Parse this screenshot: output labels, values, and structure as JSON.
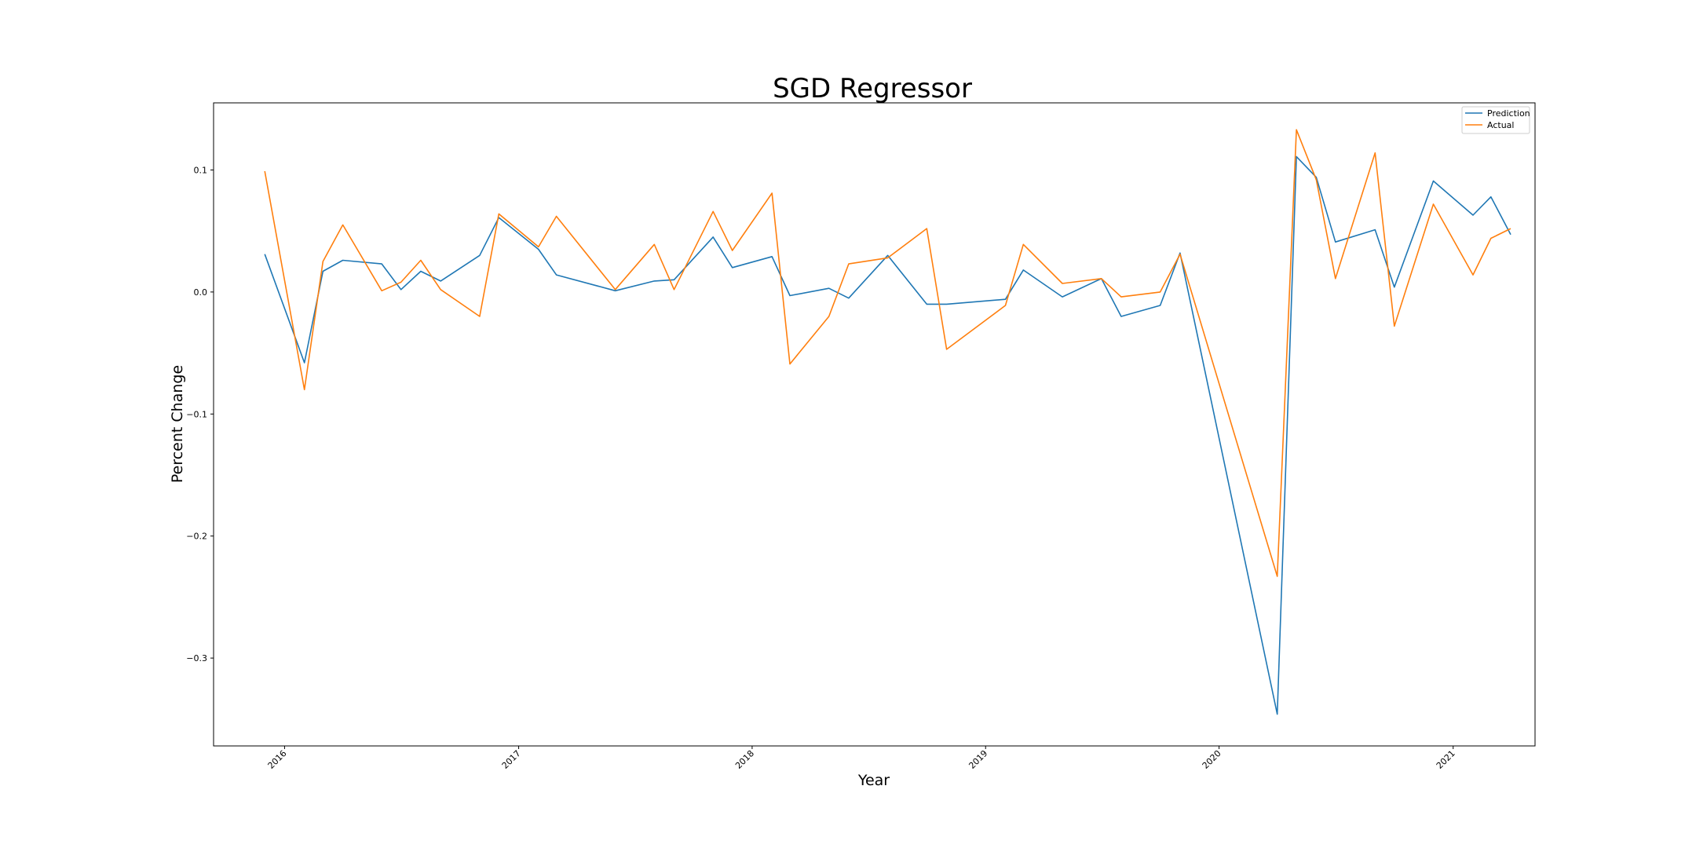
{
  "chart_data": {
    "type": "line",
    "title": "SGD Regressor",
    "xlabel": "Year",
    "ylabel": "Percent Change",
    "xlim": [
      "2015-09-12",
      "2021-05-09"
    ],
    "ylim": [
      -0.372,
      0.155
    ],
    "x_ticks": [
      "2016",
      "2017",
      "2018",
      "2019",
      "2020",
      "2021"
    ],
    "y_ticks": [
      0.1,
      0.0,
      -0.1,
      -0.2,
      -0.3
    ],
    "y_tick_labels": [
      "0.1",
      "0.0",
      "−0.1",
      "−0.2",
      "−0.3"
    ],
    "grid": false,
    "legend_position": "top-right",
    "x": [
      "2015-12-01",
      "2016-02-01",
      "2016-03-01",
      "2016-04-01",
      "2016-06-01",
      "2016-07-01",
      "2016-08-01",
      "2016-09-01",
      "2016-11-01",
      "2016-12-01",
      "2017-02-01",
      "2017-03-01",
      "2017-06-01",
      "2017-08-01",
      "2017-09-01",
      "2017-11-01",
      "2017-12-01",
      "2018-02-01",
      "2018-03-01",
      "2018-05-01",
      "2018-06-01",
      "2018-08-01",
      "2018-10-01",
      "2018-11-01",
      "2019-02-01",
      "2019-03-01",
      "2019-05-01",
      "2019-07-01",
      "2019-08-01",
      "2019-10-01",
      "2019-11-01",
      "2020-04-01",
      "2020-05-01",
      "2020-06-01",
      "2020-07-01",
      "2020-09-01",
      "2020-10-01",
      "2020-12-01",
      "2021-02-01",
      "2021-03-01",
      "2021-04-01"
    ],
    "series": [
      {
        "name": "Prediction",
        "color": "#1f77b4",
        "values": [
          0.031,
          -0.058,
          0.017,
          0.026,
          0.023,
          0.002,
          0.017,
          0.009,
          0.03,
          0.061,
          0.035,
          0.014,
          0.001,
          0.009,
          0.01,
          0.045,
          0.02,
          0.029,
          -0.003,
          0.003,
          -0.005,
          0.03,
          -0.01,
          -0.01,
          -0.006,
          0.018,
          -0.004,
          0.011,
          -0.02,
          -0.011,
          0.032,
          -0.346,
          0.111,
          0.094,
          0.041,
          0.051,
          0.004,
          0.091,
          0.063,
          0.078,
          0.047
        ]
      },
      {
        "name": "Actual",
        "color": "#ff7f0e",
        "values": [
          0.099,
          -0.08,
          0.025,
          0.055,
          0.001,
          0.008,
          0.026,
          0.002,
          -0.02,
          0.064,
          0.037,
          0.062,
          0.002,
          0.039,
          0.002,
          0.066,
          0.034,
          0.081,
          -0.059,
          -0.02,
          0.023,
          0.028,
          0.052,
          -0.047,
          -0.011,
          0.039,
          0.007,
          0.011,
          -0.004,
          0.0,
          0.031,
          -0.233,
          0.133,
          0.092,
          0.011,
          0.114,
          -0.028,
          0.072,
          0.014,
          0.044,
          0.052
        ]
      }
    ]
  }
}
